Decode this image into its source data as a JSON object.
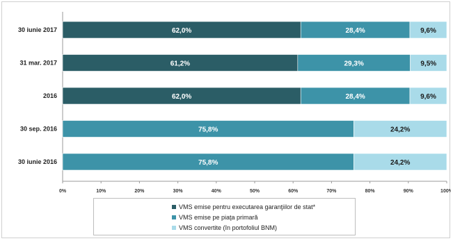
{
  "chart_data": {
    "type": "bar",
    "orientation": "horizontal",
    "stacked": true,
    "categories": [
      "30 iunie 2017",
      "31 mar. 2017",
      "2016",
      "30 sep. 2016",
      "30 iunie 2016"
    ],
    "series": [
      {
        "name": "VMS emise pentru executarea garanţiilor de stat*",
        "color": "#2b5d66",
        "values": [
          62.0,
          61.2,
          62.0,
          0,
          0
        ],
        "labels": [
          "62,0%",
          "61,2%",
          "62,0%",
          "",
          ""
        ]
      },
      {
        "name": "VMS emise pe piaţa primară",
        "color": "#3d93a8",
        "values": [
          28.4,
          29.3,
          28.4,
          75.8,
          75.8
        ],
        "labels": [
          "28,4%",
          "29,3%",
          "28,4%",
          "75,8%",
          "75,8%"
        ]
      },
      {
        "name": "VMS convertite (în portofoliul BNM)",
        "color": "#a9dbe9",
        "values": [
          9.6,
          9.5,
          9.6,
          24.2,
          24.2
        ],
        "labels": [
          "9,6%",
          "9,5%",
          "9,6%",
          "24,2%",
          "24,2%"
        ]
      }
    ],
    "x_ticks": [
      "0%",
      "10%",
      "20%",
      "30%",
      "40%",
      "50%",
      "60%",
      "70%",
      "80%",
      "90%",
      "100%"
    ],
    "xlim": [
      0,
      100
    ],
    "legend_position": "bottom",
    "grid": false
  }
}
